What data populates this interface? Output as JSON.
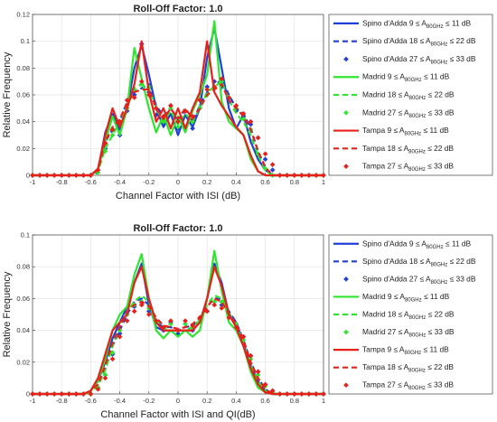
{
  "chart_data": [
    {
      "type": "line",
      "title": "Roll-Off Factor: 1.0",
      "xlabel": "Channel Factor with ISI (dB)",
      "ylabel": "Relative Frequency",
      "xlim": [
        -1,
        1
      ],
      "ylim": [
        0,
        0.12
      ],
      "xticks": [
        "-1",
        "-0.8",
        "-0.6",
        "-0.4",
        "-0.2",
        "0",
        "0.2",
        "0.4",
        "0.6",
        "0.8",
        "1"
      ],
      "yticks": [
        "0",
        "0.02",
        "0.04",
        "0.06",
        "0.08",
        "0.1",
        "0.12"
      ],
      "grid": true,
      "legend_position": "outside-right",
      "x": [
        -1,
        -0.95,
        -0.9,
        -0.85,
        -0.8,
        -0.75,
        -0.7,
        -0.65,
        -0.6,
        -0.55,
        -0.5,
        -0.45,
        -0.4,
        -0.35,
        -0.3,
        -0.25,
        -0.2,
        -0.15,
        -0.1,
        -0.05,
        0,
        0.05,
        0.1,
        0.15,
        0.2,
        0.25,
        0.3,
        0.35,
        0.4,
        0.45,
        0.5,
        0.55,
        0.6,
        0.65,
        0.7,
        0.75,
        0.8,
        0.85,
        0.9,
        0.95,
        1
      ],
      "series": [
        {
          "name_pre": "Spino d'Adda 9 ≤ A",
          "name_sub": "80GHz",
          "name_post": " ≤ 11 dB",
          "color": "#1f3fd6",
          "style": "solid",
          "values": [
            0,
            0,
            0,
            0,
            0,
            0,
            0,
            0,
            0,
            0.004,
            0.032,
            0.046,
            0.034,
            0.05,
            0.08,
            0.097,
            0.075,
            0.05,
            0.036,
            0.046,
            0.03,
            0.045,
            0.036,
            0.05,
            0.088,
            0.11,
            0.08,
            0.05,
            0.035,
            0.045,
            0.025,
            0.012,
            0.004,
            0,
            0,
            0,
            0,
            0,
            0,
            0,
            0
          ]
        },
        {
          "name_pre": "Spino d'Adda 18 ≤ A",
          "name_sub": "80GHz",
          "name_post": " ≤ 22 dB",
          "color": "#1f3fd6",
          "style": "dashed",
          "values": [
            0,
            0,
            0,
            0,
            0,
            0,
            0,
            0,
            0,
            0.002,
            0.025,
            0.034,
            0.04,
            0.055,
            0.062,
            0.065,
            0.068,
            0.052,
            0.044,
            0.05,
            0.04,
            0.048,
            0.04,
            0.052,
            0.062,
            0.066,
            0.072,
            0.06,
            0.05,
            0.046,
            0.035,
            0.018,
            0.006,
            0,
            0,
            0,
            0,
            0,
            0,
            0,
            0
          ]
        },
        {
          "name_pre": "Spino d'Adda 27 ≤ A",
          "name_sub": "80GHz",
          "name_post": " ≤ 33 dB",
          "color": "#1f3fd6",
          "style": "dots",
          "values": [
            0,
            0,
            0,
            0,
            0,
            0,
            0,
            0,
            0,
            0.004,
            0.02,
            0.034,
            0.03,
            0.048,
            0.06,
            0.098,
            0.062,
            0.045,
            0.038,
            0.052,
            0.035,
            0.048,
            0.035,
            0.05,
            0.066,
            0.07,
            0.066,
            0.055,
            0.048,
            0.044,
            0.038,
            0.028,
            0.012,
            0.004,
            0,
            0,
            0,
            0,
            0,
            0,
            0
          ]
        },
        {
          "name_pre": "Madrid 9 ≤ A",
          "name_sub": "80GHz",
          "name_post": " ≤ 11 dB",
          "color": "#2ee62e",
          "style": "solid",
          "values": [
            0,
            0,
            0,
            0,
            0,
            0,
            0,
            0,
            0,
            0.004,
            0.025,
            0.044,
            0.03,
            0.05,
            0.095,
            0.072,
            0.05,
            0.032,
            0.045,
            0.03,
            0.044,
            0.032,
            0.048,
            0.06,
            0.075,
            0.115,
            0.055,
            0.04,
            0.035,
            0.03,
            0.012,
            0.003,
            0,
            0,
            0,
            0,
            0,
            0,
            0,
            0,
            0
          ]
        },
        {
          "name_pre": "Madrid 18 ≤ A",
          "name_sub": "80GHz",
          "name_post": " ≤ 22 dB",
          "color": "#2ee62e",
          "style": "dashed",
          "values": [
            0,
            0,
            0,
            0,
            0,
            0,
            0,
            0,
            0,
            0.003,
            0.02,
            0.03,
            0.04,
            0.05,
            0.065,
            0.068,
            0.065,
            0.05,
            0.04,
            0.048,
            0.038,
            0.046,
            0.04,
            0.05,
            0.062,
            0.066,
            0.07,
            0.056,
            0.046,
            0.04,
            0.03,
            0.015,
            0.004,
            0,
            0,
            0,
            0,
            0,
            0,
            0,
            0
          ]
        },
        {
          "name_pre": "Madrid 27 ≤ A",
          "name_sub": "80GHz",
          "name_post": " ≤ 33 dB",
          "color": "#2ee62e",
          "style": "dots",
          "values": [
            0,
            0,
            0,
            0,
            0,
            0,
            0,
            0,
            0,
            0.002,
            0.018,
            0.03,
            0.038,
            0.05,
            0.064,
            0.068,
            0.066,
            0.05,
            0.04,
            0.05,
            0.036,
            0.048,
            0.04,
            0.05,
            0.06,
            0.066,
            0.07,
            0.058,
            0.05,
            0.042,
            0.034,
            0.016,
            0.005,
            0,
            0,
            0,
            0,
            0,
            0,
            0,
            0
          ]
        },
        {
          "name_pre": "Tampa 9 ≤ A",
          "name_sub": "80GHz",
          "name_post": " ≤ 11 dB",
          "color": "#e8201a",
          "style": "solid",
          "values": [
            0,
            0,
            0,
            0,
            0,
            0,
            0,
            0,
            0,
            0.005,
            0.03,
            0.05,
            0.036,
            0.05,
            0.068,
            0.1,
            0.062,
            0.04,
            0.05,
            0.035,
            0.05,
            0.035,
            0.05,
            0.062,
            0.1,
            0.062,
            0.052,
            0.044,
            0.036,
            0.03,
            0.015,
            0.003,
            0,
            0,
            0,
            0,
            0,
            0,
            0,
            0,
            0
          ]
        },
        {
          "name_pre": "Tampa 18 ≤ A",
          "name_sub": "80GHz",
          "name_post": " ≤ 22 dB",
          "color": "#e8201a",
          "style": "dashed",
          "values": [
            0,
            0,
            0,
            0,
            0,
            0,
            0,
            0,
            0,
            0.004,
            0.025,
            0.036,
            0.042,
            0.054,
            0.062,
            0.064,
            0.064,
            0.05,
            0.042,
            0.05,
            0.042,
            0.05,
            0.042,
            0.05,
            0.06,
            0.064,
            0.068,
            0.056,
            0.05,
            0.044,
            0.034,
            0.018,
            0.006,
            0,
            0,
            0,
            0,
            0,
            0,
            0,
            0
          ]
        },
        {
          "name_pre": "Tampa 27 ≤ A",
          "name_sub": "80GHz",
          "name_post": " ≤ 33 dB",
          "color": "#e8201a",
          "style": "dots",
          "values": [
            0,
            0,
            0,
            0,
            0,
            0,
            0,
            0,
            0,
            0.004,
            0.024,
            0.034,
            0.04,
            0.056,
            0.058,
            0.07,
            0.06,
            0.05,
            0.044,
            0.052,
            0.04,
            0.048,
            0.044,
            0.056,
            0.064,
            0.066,
            0.072,
            0.058,
            0.052,
            0.046,
            0.04,
            0.028,
            0.016,
            0.008,
            0,
            0,
            0,
            0,
            0,
            0,
            0
          ]
        }
      ]
    },
    {
      "type": "line",
      "title": "Roll-Off Factor: 1.0",
      "xlabel": "Channel Factor with ISI and QI(dB)",
      "ylabel": "Relative Frequency",
      "xlim": [
        -1,
        1
      ],
      "ylim": [
        0,
        0.1
      ],
      "xticks": [
        "-1",
        "-0.8",
        "-0.6",
        "-0.4",
        "-0.2",
        "0",
        "0.2",
        "0.4",
        "0.6",
        "0.8",
        "1"
      ],
      "yticks": [
        "0",
        "0.02",
        "0.04",
        "0.06",
        "0.08",
        "0.1"
      ],
      "grid": true,
      "legend_position": "outside-right",
      "x": [
        -1,
        -0.95,
        -0.9,
        -0.85,
        -0.8,
        -0.75,
        -0.7,
        -0.65,
        -0.6,
        -0.55,
        -0.5,
        -0.45,
        -0.4,
        -0.35,
        -0.3,
        -0.25,
        -0.2,
        -0.15,
        -0.1,
        -0.05,
        0,
        0.05,
        0.1,
        0.15,
        0.2,
        0.25,
        0.3,
        0.35,
        0.4,
        0.45,
        0.5,
        0.55,
        0.6,
        0.65,
        0.7,
        0.75,
        0.8,
        0.85,
        0.9,
        0.95,
        1
      ],
      "series": [
        {
          "name_pre": "Spino d'Adda 9 ≤ A",
          "name_sub": "80GHz",
          "name_post": " ≤ 11 dB",
          "color": "#1f3fd6",
          "style": "solid",
          "values": [
            0,
            0,
            0,
            0,
            0,
            0,
            0,
            0,
            0.002,
            0.008,
            0.02,
            0.035,
            0.045,
            0.055,
            0.07,
            0.082,
            0.056,
            0.042,
            0.04,
            0.04,
            0.04,
            0.04,
            0.04,
            0.045,
            0.06,
            0.082,
            0.07,
            0.05,
            0.045,
            0.032,
            0.018,
            0.008,
            0.002,
            0,
            0,
            0,
            0,
            0,
            0,
            0,
            0
          ]
        },
        {
          "name_pre": "Spino d'Adda 18 ≤ A",
          "name_sub": "80GHz",
          "name_post": " ≤ 22 dB",
          "color": "#1f3fd6",
          "style": "dashed",
          "values": [
            0,
            0,
            0,
            0,
            0,
            0,
            0,
            0,
            0.002,
            0.006,
            0.016,
            0.03,
            0.04,
            0.05,
            0.058,
            0.06,
            0.056,
            0.045,
            0.042,
            0.042,
            0.04,
            0.042,
            0.043,
            0.046,
            0.055,
            0.06,
            0.06,
            0.052,
            0.045,
            0.034,
            0.02,
            0.01,
            0.003,
            0,
            0,
            0,
            0,
            0,
            0,
            0,
            0
          ]
        },
        {
          "name_pre": "Spino d'Adda 27 ≤ A",
          "name_sub": "80GHz",
          "name_post": " ≤ 33 dB",
          "color": "#1f3fd6",
          "style": "dots",
          "values": [
            0,
            0,
            0,
            0,
            0,
            0,
            0,
            0,
            0,
            0.004,
            0.012,
            0.025,
            0.038,
            0.05,
            0.055,
            0.058,
            0.052,
            0.046,
            0.04,
            0.045,
            0.038,
            0.044,
            0.04,
            0.046,
            0.052,
            0.058,
            0.056,
            0.05,
            0.044,
            0.036,
            0.024,
            0.014,
            0.006,
            0.002,
            0,
            0,
            0,
            0,
            0,
            0,
            0
          ]
        },
        {
          "name_pre": "Madrid 9 ≤ A",
          "name_sub": "80GHz",
          "name_post": " ≤ 11 dB",
          "color": "#2ee62e",
          "style": "solid",
          "values": [
            0,
            0,
            0,
            0,
            0,
            0,
            0,
            0,
            0.002,
            0.008,
            0.022,
            0.04,
            0.05,
            0.055,
            0.075,
            0.088,
            0.06,
            0.04,
            0.035,
            0.04,
            0.036,
            0.04,
            0.036,
            0.04,
            0.06,
            0.09,
            0.065,
            0.045,
            0.04,
            0.03,
            0.014,
            0.004,
            0.001,
            0,
            0,
            0,
            0,
            0,
            0,
            0,
            0
          ]
        },
        {
          "name_pre": "Madrid 18 ≤ A",
          "name_sub": "80GHz",
          "name_post": " ≤ 22 dB",
          "color": "#2ee62e",
          "style": "dashed",
          "values": [
            0,
            0,
            0,
            0,
            0,
            0,
            0,
            0,
            0.001,
            0.005,
            0.015,
            0.03,
            0.042,
            0.052,
            0.058,
            0.062,
            0.058,
            0.046,
            0.042,
            0.04,
            0.04,
            0.04,
            0.042,
            0.046,
            0.056,
            0.062,
            0.06,
            0.05,
            0.044,
            0.032,
            0.018,
            0.008,
            0.002,
            0,
            0,
            0,
            0,
            0,
            0,
            0,
            0
          ]
        },
        {
          "name_pre": "Madrid 27 ≤ A",
          "name_sub": "80GHz",
          "name_post": " ≤ 33 dB",
          "color": "#2ee62e",
          "style": "dots",
          "values": [
            0,
            0,
            0,
            0,
            0,
            0,
            0,
            0,
            0,
            0.004,
            0.012,
            0.026,
            0.04,
            0.05,
            0.056,
            0.058,
            0.054,
            0.046,
            0.042,
            0.044,
            0.04,
            0.044,
            0.042,
            0.046,
            0.052,
            0.058,
            0.058,
            0.05,
            0.044,
            0.034,
            0.022,
            0.012,
            0.005,
            0.001,
            0,
            0,
            0,
            0,
            0,
            0,
            0
          ]
        },
        {
          "name_pre": "Tampa 9 ≤ A",
          "name_sub": "80GHz",
          "name_post": " ≤ 11 dB",
          "color": "#e8201a",
          "style": "solid",
          "values": [
            0,
            0,
            0,
            0,
            0,
            0,
            0,
            0,
            0.002,
            0.01,
            0.025,
            0.04,
            0.045,
            0.05,
            0.07,
            0.08,
            0.06,
            0.045,
            0.04,
            0.04,
            0.04,
            0.04,
            0.04,
            0.045,
            0.06,
            0.08,
            0.068,
            0.05,
            0.042,
            0.03,
            0.016,
            0.006,
            0.001,
            0,
            0,
            0,
            0,
            0,
            0,
            0,
            0
          ]
        },
        {
          "name_pre": "Tampa 18 ≤ A",
          "name_sub": "80GHz",
          "name_post": " ≤ 22 dB",
          "color": "#e8201a",
          "style": "dashed",
          "values": [
            0,
            0,
            0,
            0,
            0,
            0,
            0,
            0,
            0.002,
            0.006,
            0.018,
            0.032,
            0.042,
            0.052,
            0.056,
            0.058,
            0.055,
            0.048,
            0.043,
            0.042,
            0.041,
            0.042,
            0.044,
            0.048,
            0.055,
            0.06,
            0.058,
            0.05,
            0.044,
            0.034,
            0.02,
            0.01,
            0.003,
            0,
            0,
            0,
            0,
            0,
            0,
            0,
            0
          ]
        },
        {
          "name_pre": "Tampa 27 ≤ A",
          "name_sub": "80GHz",
          "name_post": " ≤ 33 dB",
          "color": "#e8201a",
          "style": "dots",
          "values": [
            0,
            0,
            0,
            0,
            0,
            0,
            0,
            0,
            0,
            0.003,
            0.01,
            0.022,
            0.036,
            0.046,
            0.052,
            0.056,
            0.05,
            0.046,
            0.042,
            0.046,
            0.04,
            0.046,
            0.043,
            0.048,
            0.052,
            0.056,
            0.054,
            0.048,
            0.042,
            0.036,
            0.024,
            0.014,
            0.006,
            0.002,
            0,
            0,
            0,
            0,
            0,
            0,
            0
          ]
        }
      ]
    }
  ]
}
